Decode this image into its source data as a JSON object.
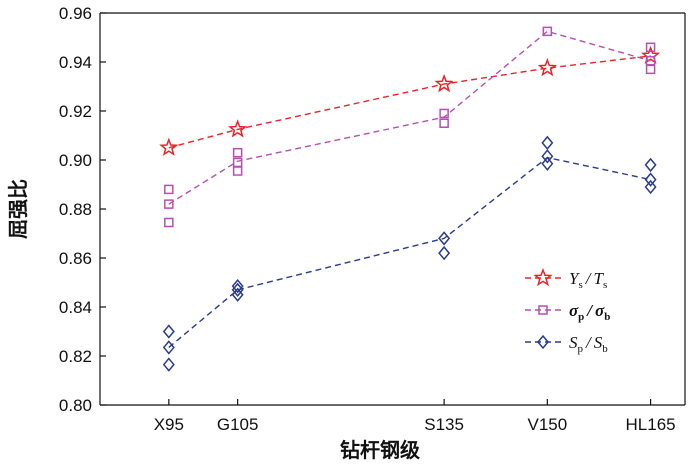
{
  "chart_data": {
    "type": "line",
    "xlabel": "钻杆钢级",
    "ylabel": "屈强比",
    "ylim": [
      0.8,
      0.96
    ],
    "yticks": [
      "0.80",
      "0.82",
      "0.84",
      "0.86",
      "0.88",
      "0.90",
      "0.92",
      "0.94",
      "0.96"
    ],
    "categories": [
      "X95",
      "G105",
      "S135",
      "V150",
      "HL165"
    ],
    "x": [
      95,
      105,
      135,
      150,
      165
    ],
    "legend_position": "right",
    "series": [
      {
        "name": "Ys/Ts",
        "legend": {
          "main1": "Y",
          "sub1": "s",
          "sep": "/",
          "main2": "T",
          "sub2": "s"
        },
        "marker": "star",
        "color": "#e8232a",
        "mean": [
          0.905,
          0.9125,
          0.931,
          0.9375,
          0.9425
        ],
        "points": [
          [
            95,
            0.905
          ],
          [
            105,
            0.9125
          ],
          [
            135,
            0.931
          ],
          [
            150,
            0.9375
          ],
          [
            165,
            0.9425
          ]
        ]
      },
      {
        "name": "σp/σb",
        "legend": {
          "main1": "σ",
          "sub1": "p",
          "sep": "/",
          "main2": "σ",
          "sub2": "b"
        },
        "marker": "square",
        "color": "#b64fb3",
        "mean": [
          0.882,
          0.8995,
          0.9175,
          0.9525,
          0.9405
        ],
        "points": [
          [
            95,
            0.888
          ],
          [
            95,
            0.882
          ],
          [
            95,
            0.8745
          ],
          [
            105,
            0.903
          ],
          [
            105,
            0.899
          ],
          [
            105,
            0.8955
          ],
          [
            135,
            0.919
          ],
          [
            135,
            0.915
          ],
          [
            150,
            0.9525
          ],
          [
            165,
            0.946
          ],
          [
            165,
            0.9405
          ],
          [
            165,
            0.937
          ]
        ]
      },
      {
        "name": "Sp/Sb",
        "legend": {
          "main1": "S",
          "sub1": "p",
          "sep": "/",
          "main2": "S",
          "sub2": "b"
        },
        "marker": "diamond",
        "color": "#283b8c",
        "mean": [
          0.8235,
          0.847,
          0.868,
          0.901,
          0.892
        ],
        "points": [
          [
            95,
            0.83
          ],
          [
            95,
            0.8235
          ],
          [
            95,
            0.8165
          ],
          [
            105,
            0.8485
          ],
          [
            105,
            0.847
          ],
          [
            105,
            0.845
          ],
          [
            135,
            0.868
          ],
          [
            135,
            0.862
          ],
          [
            150,
            0.907
          ],
          [
            150,
            0.9015
          ],
          [
            150,
            0.8985
          ],
          [
            165,
            0.898
          ],
          [
            165,
            0.892
          ],
          [
            165,
            0.889
          ]
        ]
      }
    ]
  }
}
